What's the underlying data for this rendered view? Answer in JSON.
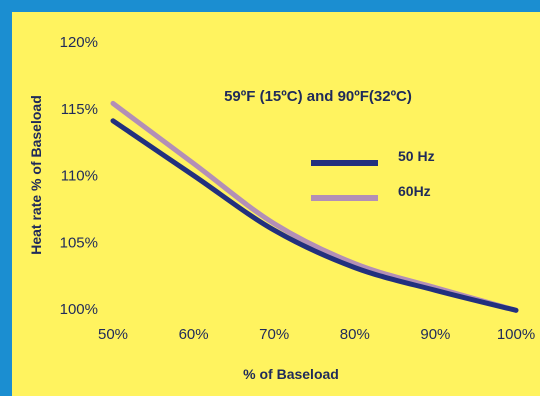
{
  "chart_data": {
    "type": "line",
    "title": "59ºF (15ºC) and 90ºF(32ºC)",
    "xlabel": "% of Baseload",
    "ylabel": "Heat rate % of Baseload",
    "x": [
      50,
      60,
      70,
      80,
      90,
      100
    ],
    "x_tick_labels": [
      "50%",
      "60%",
      "70%",
      "80%",
      "90%",
      "100%"
    ],
    "y_tick_labels": [
      "100%",
      "105%",
      "110%",
      "115%",
      "120%"
    ],
    "y_ticks": [
      100,
      105,
      110,
      115,
      120
    ],
    "xlim": [
      50,
      100
    ],
    "ylim": [
      100,
      120
    ],
    "grid": false,
    "legend_position": "right",
    "series": [
      {
        "name": "50 Hz",
        "color": "#22307e",
        "values": [
          114.1,
          110.0,
          105.9,
          103.1,
          101.4,
          99.9
        ]
      },
      {
        "name": "60Hz",
        "color": "#b38fb6",
        "values": [
          115.4,
          110.9,
          106.4,
          103.4,
          101.6,
          99.9
        ]
      }
    ]
  }
}
